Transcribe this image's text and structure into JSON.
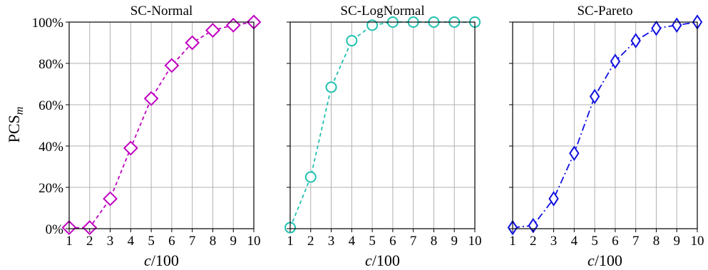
{
  "figure": {
    "y_axis_label_main": "PCS",
    "y_axis_label_sub": "m"
  },
  "chart_data": [
    {
      "type": "line",
      "title": "SC-Normal",
      "xlabel_italic": "c",
      "xlabel_rest": "/100",
      "ylabel": "PCS_m",
      "x": [
        1,
        2,
        3,
        4,
        5,
        6,
        7,
        8,
        9,
        10
      ],
      "xlim": [
        1,
        10
      ],
      "ylim": [
        0,
        100
      ],
      "x_ticks": [
        "1",
        "2",
        "3",
        "4",
        "5",
        "6",
        "7",
        "8",
        "9",
        "10"
      ],
      "y_ticks": [
        "0%",
        "20%",
        "40%",
        "60%",
        "80%",
        "100%"
      ],
      "grid": true,
      "series": [
        {
          "values": [
            0.5,
            0.5,
            14.5,
            39,
            63,
            79,
            90,
            96,
            98.5,
            100
          ],
          "color": "#c000c0",
          "marker": "diamond",
          "line_style": "dashed"
        }
      ]
    },
    {
      "type": "line",
      "title": "SC-LogNormal",
      "xlabel_italic": "c",
      "xlabel_rest": "/100",
      "x": [
        1,
        2,
        3,
        4,
        5,
        6,
        7,
        8,
        9,
        10
      ],
      "xlim": [
        1,
        10
      ],
      "ylim": [
        0,
        100
      ],
      "x_ticks": [
        "1",
        "2",
        "3",
        "4",
        "5",
        "6",
        "7",
        "8",
        "9",
        "10"
      ],
      "grid": true,
      "series": [
        {
          "values": [
            0.5,
            25,
            68.5,
            91,
            98.5,
            100,
            100,
            100,
            100,
            100
          ],
          "color": "#20c0b0",
          "marker": "circle",
          "line_style": "dashed"
        }
      ]
    },
    {
      "type": "line",
      "title": "SC-Pareto",
      "xlabel_italic": "c",
      "xlabel_rest": "/100",
      "x": [
        1,
        2,
        3,
        4,
        5,
        6,
        7,
        8,
        9,
        10
      ],
      "xlim": [
        1,
        10
      ],
      "ylim": [
        0,
        100
      ],
      "x_ticks": [
        "1",
        "2",
        "3",
        "4",
        "5",
        "6",
        "7",
        "8",
        "9",
        "10"
      ],
      "grid": true,
      "series": [
        {
          "values": [
            0.5,
            1.5,
            14.5,
            36.5,
            64,
            81,
            91,
            97,
            98.5,
            100
          ],
          "color": "#1010e0",
          "marker": "thin-diamond",
          "line_style": "dashdot"
        }
      ]
    }
  ]
}
